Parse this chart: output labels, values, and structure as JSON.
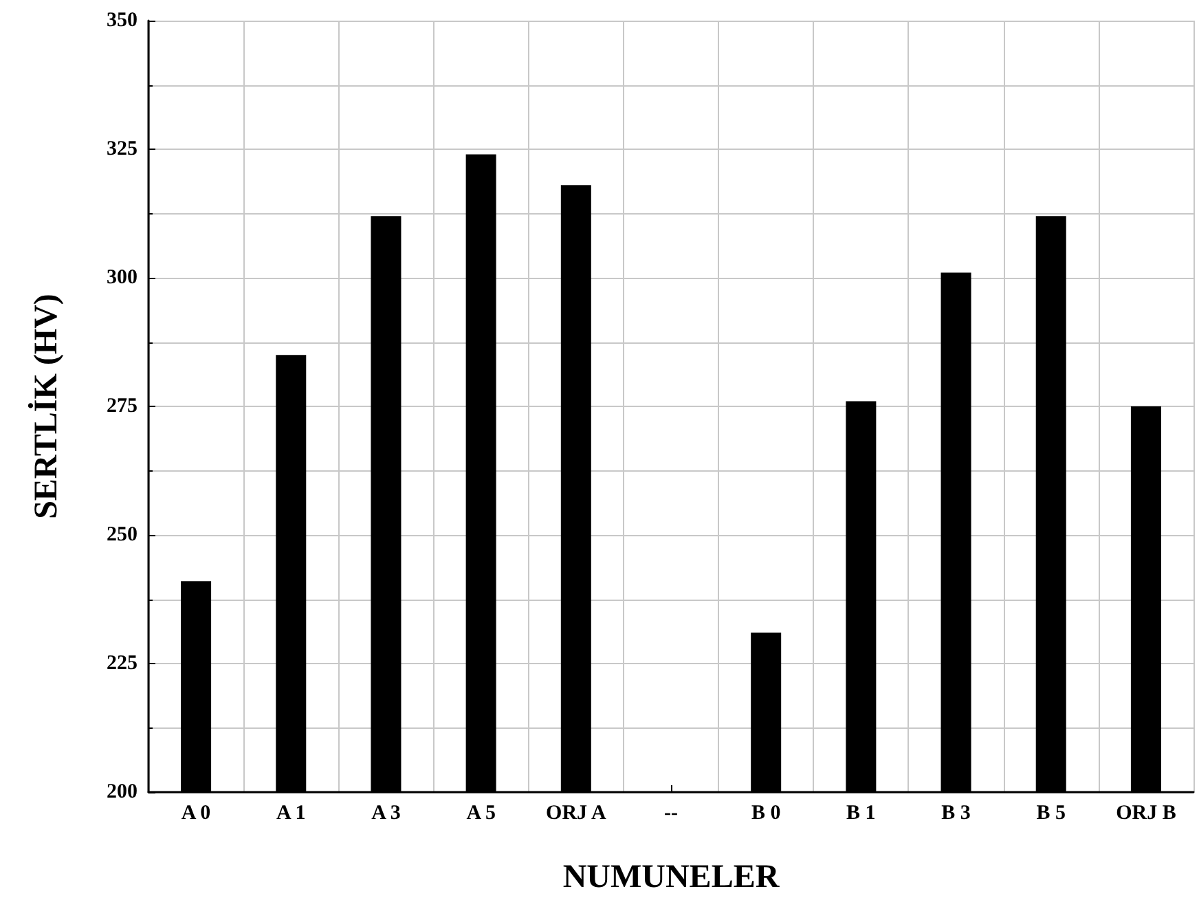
{
  "chart_data": {
    "type": "bar",
    "xlabel": "NUMUNELER",
    "ylabel": "SERTLİK (HV)",
    "categories": [
      "A 0",
      "A 1",
      "A 3",
      "A 5",
      "ORJ A",
      "--",
      "B 0",
      "B 1",
      "B 3",
      "B 5",
      "ORJ B"
    ],
    "values": [
      241,
      285,
      312,
      324,
      318,
      null,
      231,
      276,
      301,
      312,
      275
    ],
    "color": "#000000",
    "ylim": [
      200,
      350
    ],
    "yticks": [
      200,
      225,
      250,
      275,
      300,
      325,
      350
    ],
    "grid": true
  }
}
